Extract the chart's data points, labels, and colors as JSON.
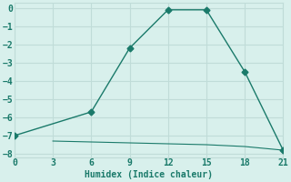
{
  "line1_x": [
    0,
    6,
    9,
    12,
    15,
    18,
    21
  ],
  "line1_y": [
    -7.0,
    -5.7,
    -2.2,
    -0.1,
    -0.1,
    -3.5,
    -7.8
  ],
  "line2_x": [
    3,
    6,
    9,
    12,
    15,
    18,
    21
  ],
  "line2_y": [
    -7.3,
    -7.35,
    -7.4,
    -7.45,
    -7.5,
    -7.6,
    -7.8
  ],
  "line_color": "#1a7a6a",
  "bg_color": "#d8f0ec",
  "grid_color": "#c0dcd8",
  "xlabel": "Humidex (Indice chaleur)",
  "xlim": [
    0,
    21
  ],
  "ylim": [
    -8.2,
    0.3
  ],
  "xticks": [
    0,
    3,
    6,
    9,
    12,
    15,
    18,
    21
  ],
  "yticks": [
    0,
    -1,
    -2,
    -3,
    -4,
    -5,
    -6,
    -7,
    -8
  ],
  "xlabel_color": "#1a7a6a",
  "tick_color": "#1a7a6a",
  "marker": "D",
  "markersize": 3.5,
  "linewidth1": 1.0,
  "linewidth2": 0.8
}
